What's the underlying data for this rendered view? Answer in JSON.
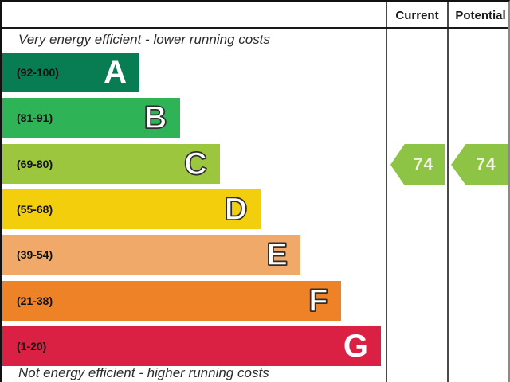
{
  "header": {
    "current": "Current",
    "potential": "Potential"
  },
  "captions": {
    "top": "Very energy efficient - lower running costs",
    "bottom": "Not energy efficient - higher running costs"
  },
  "bands": [
    {
      "letter": "A",
      "range": "(92-100)",
      "color": "#087c52",
      "outlined": false
    },
    {
      "letter": "B",
      "range": "(81-91)",
      "color": "#2eb457",
      "outlined": true
    },
    {
      "letter": "C",
      "range": "(69-80)",
      "color": "#9cc63d",
      "outlined": true
    },
    {
      "letter": "D",
      "range": "(55-68)",
      "color": "#f3ce0d",
      "outlined": true
    },
    {
      "letter": "E",
      "range": "(39-54)",
      "color": "#f0a968",
      "outlined": true
    },
    {
      "letter": "F",
      "range": "(21-38)",
      "color": "#ee8226",
      "outlined": true
    },
    {
      "letter": "G",
      "range": "(1-20)",
      "color": "#db2143",
      "outlined": false
    }
  ],
  "ratings": {
    "current": {
      "value": "74",
      "band": "C",
      "color": "#8ec445"
    },
    "potential": {
      "value": "74",
      "band": "C",
      "color": "#8ec445"
    }
  },
  "chart_data": {
    "type": "bar",
    "categories": [
      "A",
      "B",
      "C",
      "D",
      "E",
      "F",
      "G"
    ],
    "ranges": [
      "92-100",
      "81-91",
      "69-80",
      "55-68",
      "39-54",
      "21-38",
      "1-20"
    ],
    "band_colors": [
      "#087c52",
      "#2eb457",
      "#9cc63d",
      "#f3ce0d",
      "#f0a968",
      "#ee8226",
      "#db2143"
    ],
    "series": [
      {
        "name": "Current",
        "values": [
          74
        ]
      },
      {
        "name": "Potential",
        "values": [
          74
        ]
      }
    ],
    "annotations": [
      "Very energy efficient - lower running costs",
      "Not energy efficient - higher running costs"
    ],
    "legend_position": "top-right-columns",
    "grid": false
  }
}
